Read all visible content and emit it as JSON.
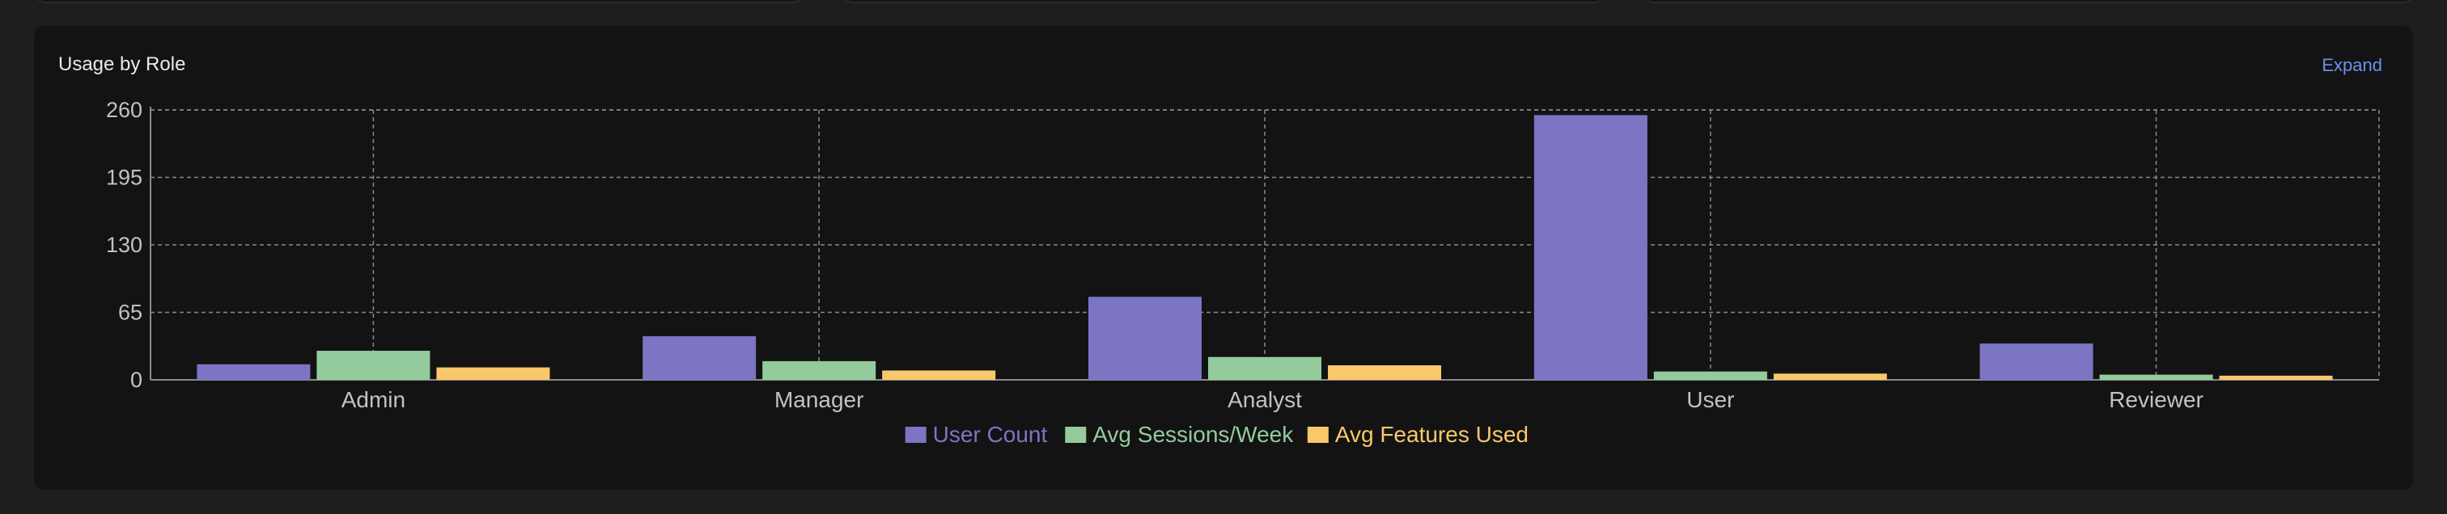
{
  "panel": {
    "title": "Usage by Role",
    "expand_label": "Expand"
  },
  "chart_data": {
    "type": "bar",
    "categories": [
      "Admin",
      "Manager",
      "Analyst",
      "User",
      "Reviewer"
    ],
    "series": [
      {
        "name": "User Count",
        "color": "#7b75c4",
        "values": [
          15,
          42,
          80,
          255,
          35
        ]
      },
      {
        "name": "Avg Sessions/Week",
        "color": "#94cb9d",
        "values": [
          28,
          18,
          22,
          8,
          5
        ]
      },
      {
        "name": "Avg Features Used",
        "color": "#f8c86b",
        "values": [
          12,
          9,
          14,
          6,
          4
        ]
      }
    ],
    "y_ticks": [
      "0",
      "65",
      "130",
      "195",
      "260"
    ],
    "ylim": [
      0,
      260
    ],
    "grid": true,
    "legend": "bottom-center"
  }
}
